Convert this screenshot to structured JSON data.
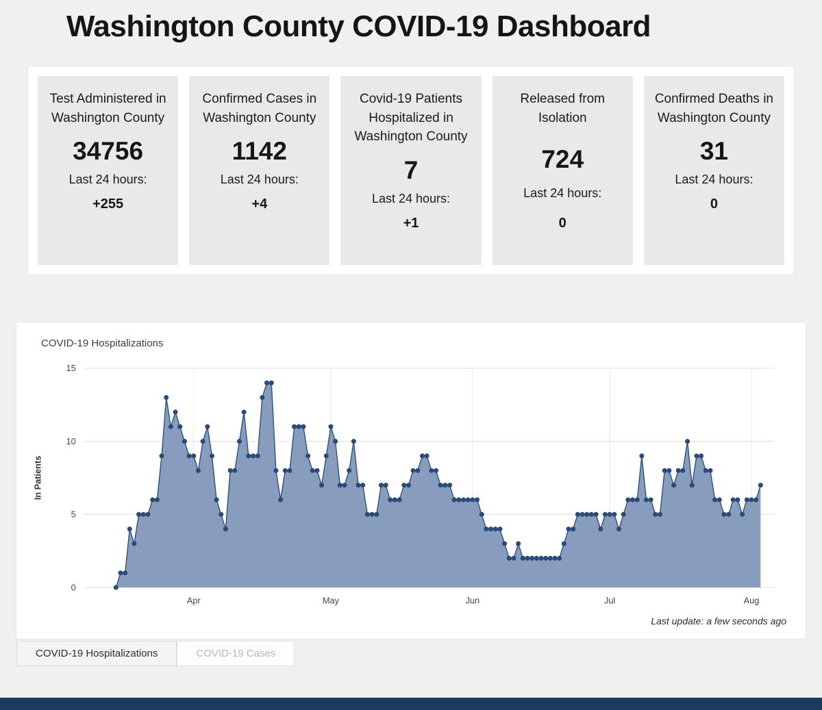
{
  "page": {
    "title": "Washington County COVID-19 Dashboard"
  },
  "stats": [
    {
      "label": "Test Administered in Washington County",
      "value": "34756",
      "last24_label": "Last 24 hours:",
      "delta": "+255"
    },
    {
      "label": "Confirmed Cases in Washington County",
      "value": "1142",
      "last24_label": "Last 24 hours:",
      "delta": "+4"
    },
    {
      "label": "Covid-19 Patients Hospitalized in Washington County",
      "value": "7",
      "last24_label": "Last 24 hours:",
      "delta": "+1"
    },
    {
      "label": "Released from Isolation",
      "value": "724",
      "last24_label": "Last 24 hours:",
      "delta": "0"
    },
    {
      "label": "Confirmed Deaths in Washington County",
      "value": "31",
      "last24_label": "Last 24 hours:",
      "delta": "0"
    }
  ],
  "chart_section": {
    "title": "COVID-19 Hospitalizations",
    "last_update": "Last update: a few seconds ago",
    "tabs": [
      {
        "label": "COVID-19 Hospitalizations",
        "active": true
      },
      {
        "label": "COVID-19 Cases",
        "active": false
      }
    ]
  },
  "colors": {
    "area": "#7E95B8",
    "line": "#2D4E7C",
    "dot": "#2A4A78",
    "grid": "#DCDCDC",
    "footer": "#1E3A5F"
  },
  "chart_data": {
    "type": "area",
    "title": "COVID-19 Hospitalizations",
    "xlabel": "",
    "ylabel": "In Patients",
    "ylim": [
      0,
      15
    ],
    "yticks": [
      0,
      5,
      10,
      15
    ],
    "x_unit": "day",
    "x_ticks": [
      {
        "label": "Apr",
        "index": 17
      },
      {
        "label": "May",
        "index": 47
      },
      {
        "label": "Jun",
        "index": 78
      },
      {
        "label": "Jul",
        "index": 108
      },
      {
        "label": "Aug",
        "index": 139
      }
    ],
    "values": [
      0,
      1,
      1,
      4,
      3,
      5,
      5,
      5,
      6,
      6,
      9,
      13,
      11,
      12,
      11,
      10,
      9,
      9,
      8,
      10,
      11,
      9,
      6,
      5,
      4,
      8,
      8,
      10,
      12,
      9,
      9,
      9,
      13,
      14,
      14,
      8,
      6,
      8,
      8,
      11,
      11,
      11,
      9,
      8,
      8,
      7,
      9,
      11,
      10,
      7,
      7,
      8,
      10,
      7,
      7,
      5,
      5,
      5,
      7,
      7,
      6,
      6,
      6,
      7,
      7,
      8,
      8,
      9,
      9,
      8,
      8,
      7,
      7,
      7,
      6,
      6,
      6,
      6,
      6,
      6,
      5,
      4,
      4,
      4,
      4,
      3,
      2,
      2,
      3,
      2,
      2,
      2,
      2,
      2,
      2,
      2,
      2,
      2,
      3,
      4,
      4,
      5,
      5,
      5,
      5,
      5,
      4,
      5,
      5,
      5,
      4,
      5,
      6,
      6,
      6,
      9,
      6,
      6,
      5,
      5,
      8,
      8,
      7,
      8,
      8,
      10,
      7,
      9,
      9,
      8,
      8,
      6,
      6,
      5,
      5,
      6,
      6,
      5,
      6,
      6,
      6,
      7
    ],
    "grid": true,
    "legend": false
  }
}
